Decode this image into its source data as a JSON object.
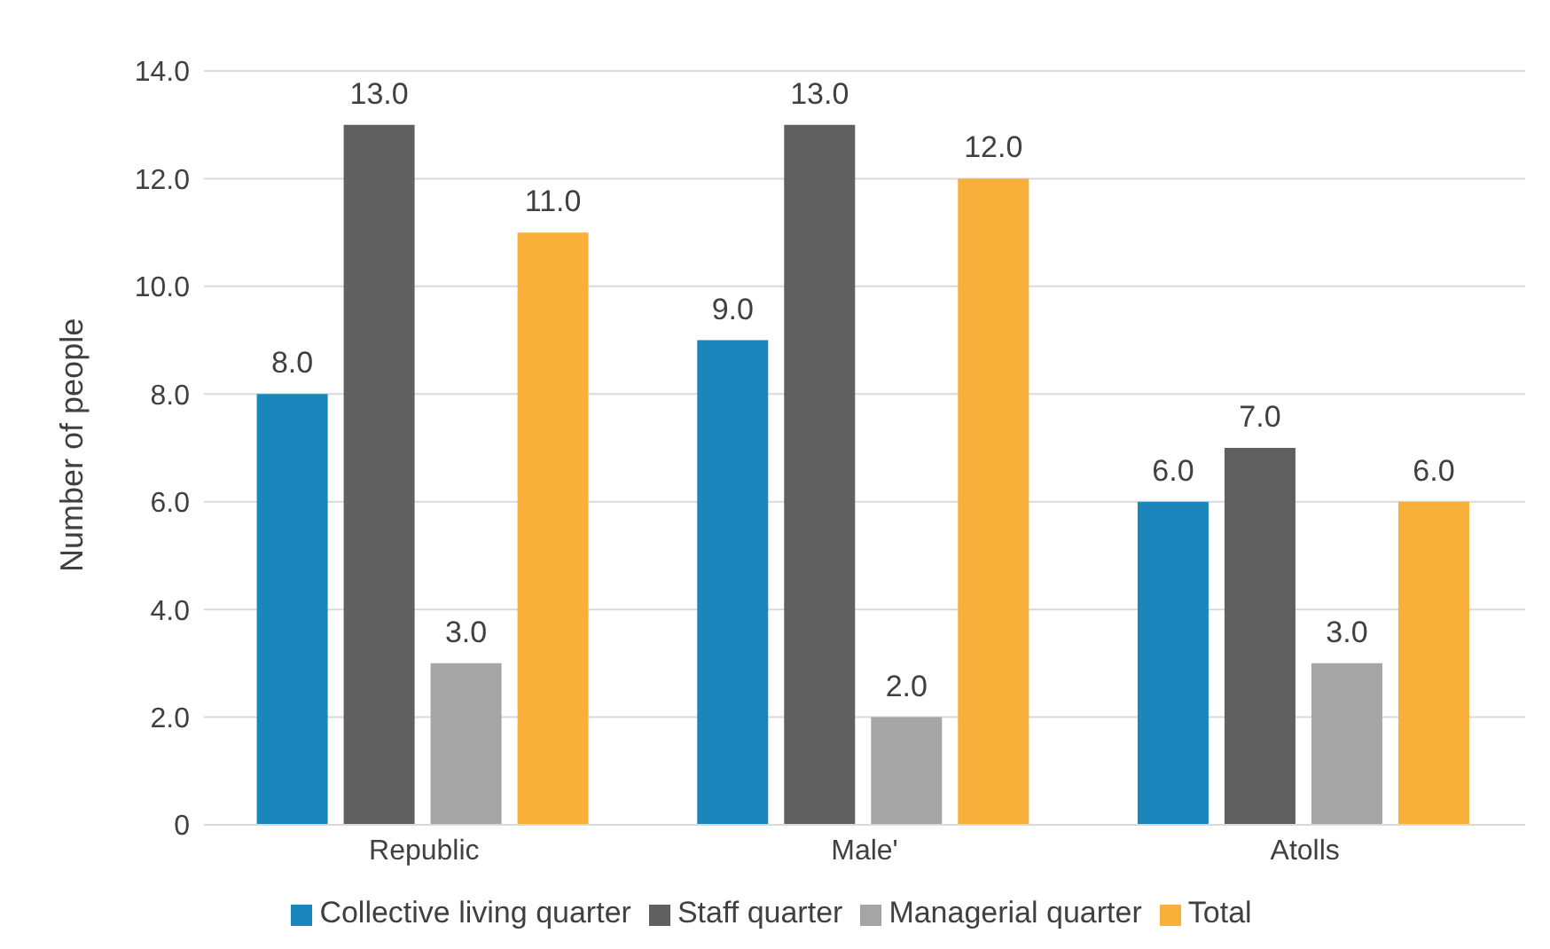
{
  "chart_data": {
    "type": "bar",
    "ylabel": "Number of people",
    "categories": [
      "Republic",
      "Male'",
      "Atolls"
    ],
    "series": [
      {
        "name": "Collective living quarter",
        "color": "#1a86bc",
        "values": [
          8,
          9,
          6
        ],
        "value_labels": [
          "8.0",
          "9.0",
          "6.0"
        ]
      },
      {
        "name": "Staff quarter",
        "color": "#606060",
        "values": [
          13,
          13,
          7
        ],
        "value_labels": [
          "13.0",
          "13.0",
          "7.0"
        ]
      },
      {
        "name": "Managerial quarter",
        "color": "#a5a5a5",
        "values": [
          3,
          2,
          3
        ],
        "value_labels": [
          "3.0",
          "2.0",
          "3.0"
        ]
      },
      {
        "name": "Total",
        "color": "#f8b03a",
        "values": [
          11,
          12,
          6
        ],
        "value_labels": [
          "11.0",
          "12.0",
          "6.0"
        ]
      }
    ],
    "ylim": [
      0,
      14
    ],
    "yticks": [
      0,
      {
        "value": 2,
        "label": "2.0"
      },
      {
        "value": 4,
        "label": "4.0"
      },
      {
        "value": 6,
        "label": "6.0"
      },
      {
        "value": 8,
        "label": "8.0"
      },
      {
        "value": 10,
        "label": "10.0"
      },
      {
        "value": 12,
        "label": "12.0"
      },
      {
        "value": 14,
        "label": "14.0"
      }
    ],
    "grid": "y",
    "legend": "bottom"
  }
}
